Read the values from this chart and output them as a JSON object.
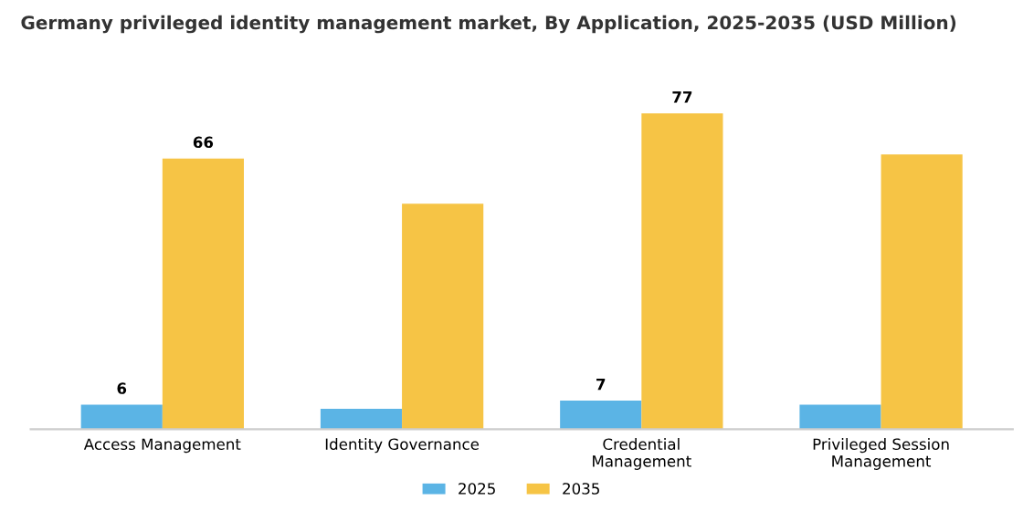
{
  "chart_data": {
    "type": "bar",
    "title": "Germany privileged identity management market, By Application, 2025-2035 (USD Million)",
    "categories": [
      "Access Management",
      "Identity Governance",
      "Credential\nManagement",
      "Privileged Session\nManagement"
    ],
    "series": [
      {
        "name": "2025",
        "color": "#5bb4e5",
        "values": [
          6,
          5,
          7,
          6
        ],
        "value_labels": [
          "6",
          null,
          "7",
          null
        ]
      },
      {
        "name": "2035",
        "color": "#f6c445",
        "values": [
          66,
          55,
          77,
          67
        ],
        "value_labels": [
          "66",
          null,
          "77",
          null
        ]
      }
    ],
    "legend": "bottom",
    "grid": false
  }
}
